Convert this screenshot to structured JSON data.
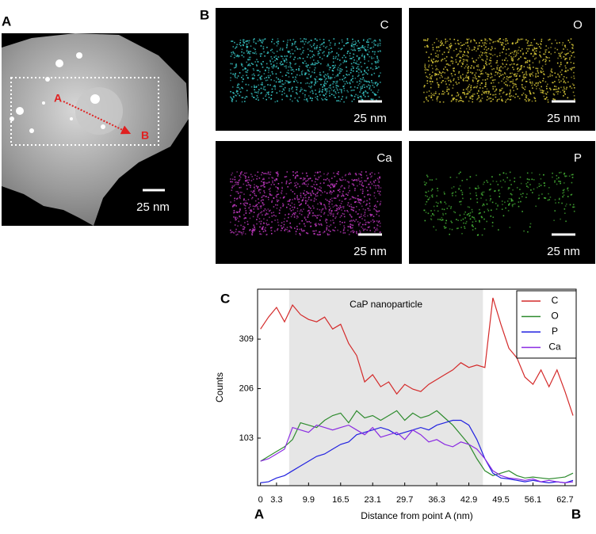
{
  "panels": {
    "a": {
      "label": "A",
      "point_a": "A",
      "point_b": "B",
      "scale": "25 nm"
    },
    "b": {
      "label": "B",
      "maps": [
        {
          "element": "C",
          "scale": "25 nm",
          "color": "#38c8c8"
        },
        {
          "element": "O",
          "scale": "25 nm",
          "color": "#d8c838"
        },
        {
          "element": "Ca",
          "scale": "25 nm",
          "color": "#c038c0"
        },
        {
          "element": "P",
          "scale": "25 nm",
          "color": "#48b838"
        }
      ]
    }
  },
  "chart_data": {
    "type": "line",
    "panel_label": "C",
    "annotation": "CaP nanoparticle",
    "shade": [
      5.9,
      45.8
    ],
    "xlabel": "Distance from point A (nm)",
    "ylabel": "Counts",
    "x_end_labels": [
      "A",
      "B"
    ],
    "x": [
      0,
      1.65,
      3.3,
      4.95,
      6.6,
      8.25,
      9.9,
      11.55,
      13.2,
      14.85,
      16.5,
      18.15,
      19.8,
      21.45,
      23.1,
      24.75,
      26.4,
      28.05,
      29.7,
      31.35,
      33,
      34.65,
      36.3,
      37.95,
      39.6,
      41.25,
      42.9,
      44.55,
      46.2,
      47.85,
      49.5,
      51.15,
      52.8,
      54.45,
      56.1,
      57.75,
      59.4,
      61.05,
      62.7,
      64.35
    ],
    "series": [
      {
        "name": "C",
        "color": "#d42a2a",
        "values": [
          330,
          355,
          375,
          345,
          380,
          360,
          350,
          345,
          355,
          330,
          340,
          300,
          275,
          220,
          235,
          210,
          220,
          195,
          215,
          205,
          200,
          215,
          225,
          235,
          245,
          260,
          250,
          255,
          250,
          395,
          340,
          290,
          270,
          230,
          215,
          245,
          210,
          245,
          200,
          150
        ]
      },
      {
        "name": "O",
        "color": "#2e8b2e",
        "values": [
          55,
          65,
          75,
          85,
          100,
          135,
          130,
          125,
          140,
          150,
          155,
          135,
          160,
          145,
          150,
          140,
          150,
          160,
          140,
          155,
          145,
          150,
          160,
          145,
          130,
          110,
          90,
          60,
          35,
          25,
          30,
          35,
          25,
          20,
          22,
          20,
          18,
          20,
          22,
          30
        ]
      },
      {
        "name": "P",
        "color": "#2222e0",
        "values": [
          10,
          12,
          20,
          25,
          35,
          45,
          55,
          65,
          70,
          80,
          90,
          95,
          110,
          115,
          120,
          125,
          120,
          110,
          115,
          120,
          125,
          120,
          130,
          135,
          140,
          140,
          130,
          100,
          60,
          30,
          20,
          18,
          15,
          12,
          15,
          12,
          10,
          12,
          10,
          15
        ]
      },
      {
        "name": "Ca",
        "color": "#8a2be2",
        "values": [
          55,
          60,
          70,
          80,
          125,
          120,
          115,
          130,
          125,
          120,
          125,
          130,
          120,
          110,
          125,
          105,
          110,
          115,
          100,
          120,
          110,
          95,
          100,
          90,
          85,
          95,
          90,
          80,
          60,
          35,
          25,
          20,
          18,
          15,
          18,
          12,
          15,
          12,
          10,
          12
        ]
      }
    ],
    "xlim": [
      -0.6,
      65
    ],
    "ylim": [
      4,
      413
    ],
    "xticks": [
      0,
      3.3,
      9.9,
      16.5,
      23.1,
      29.7,
      36.3,
      42.9,
      49.5,
      56.1,
      62.7
    ],
    "yticks": [
      103,
      206,
      309
    ],
    "grid": false,
    "legend": "upper right"
  }
}
